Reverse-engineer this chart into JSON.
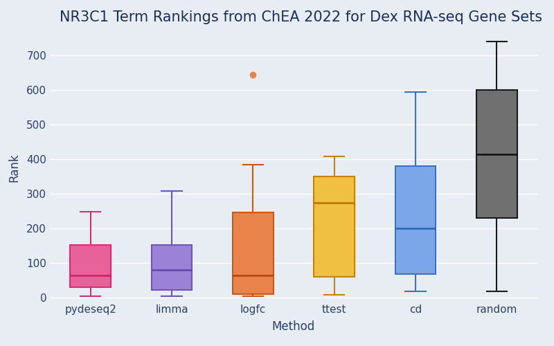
{
  "title": "NR3C1 Term Rankings from ChEA 2022 for Dex RNA-seq Gene Sets",
  "xlabel": "Method",
  "ylabel": "Rank",
  "background_color": "#e8edf4",
  "methods": [
    "pydeseq2",
    "limma",
    "logfc",
    "ttest",
    "cd",
    "random"
  ],
  "box_data": {
    "pydeseq2": {
      "whislo": 5,
      "q1": 30,
      "med": 65,
      "q3": 153,
      "whishi": 248,
      "fliers": []
    },
    "limma": {
      "whislo": 5,
      "q1": 22,
      "med": 80,
      "q3": 153,
      "whishi": 308,
      "fliers": []
    },
    "logfc": {
      "whislo": 5,
      "q1": 10,
      "med": 65,
      "q3": 247,
      "whishi": 385,
      "fliers": [
        645
      ]
    },
    "ttest": {
      "whislo": 8,
      "q1": 60,
      "med": 275,
      "q3": 350,
      "whishi": 408,
      "fliers": []
    },
    "cd": {
      "whislo": 18,
      "q1": 68,
      "med": 200,
      "q3": 380,
      "whishi": 595,
      "fliers": []
    },
    "random": {
      "whislo": 18,
      "q1": 230,
      "med": 415,
      "q3": 600,
      "whishi": 740,
      "fliers": []
    }
  },
  "box_colors": {
    "pydeseq2": "#e8629a",
    "limma": "#9b82d6",
    "logfc": "#e8834a",
    "ttest": "#f0c040",
    "cd": "#7ba7e8",
    "random": "#707070"
  },
  "edge_colors": {
    "pydeseq2": "#d43070",
    "limma": "#7055b8",
    "logfc": "#c85818",
    "ttest": "#c88010",
    "cd": "#4070c0",
    "random": "#1a1a1a"
  },
  "median_colors": {
    "pydeseq2": "#c82060",
    "limma": "#6045a8",
    "logfc": "#b84010",
    "ttest": "#b87000",
    "cd": "#3060b0",
    "random": "#101010"
  },
  "flier_colors": {
    "logfc": "#e8834a"
  },
  "ylim": [
    -10,
    760
  ],
  "yticks": [
    0,
    100,
    200,
    300,
    400,
    500,
    600,
    700
  ],
  "title_fontsize": 15,
  "label_fontsize": 12,
  "tick_fontsize": 11,
  "title_color": "#1a2f5a",
  "label_color": "#2a3f6a",
  "grid_color": "#ffffff"
}
